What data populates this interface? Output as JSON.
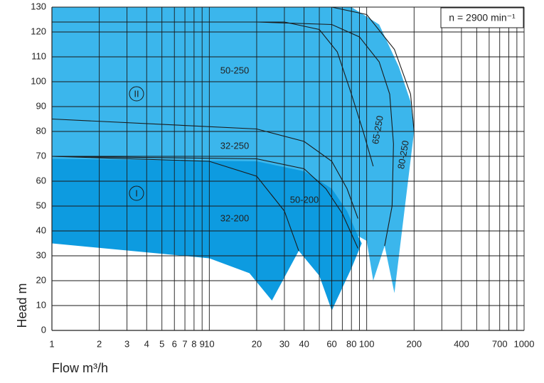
{
  "chart_data": {
    "type": "area",
    "x_label": "Flow m³/h",
    "y_label": "Head m",
    "annotation": "n = 2900 min⁻¹",
    "xscale": "log",
    "grid": true,
    "xlim": [
      1,
      1000
    ],
    "ylim": [
      0,
      130
    ],
    "xticks": [
      1,
      2,
      3,
      4,
      5,
      6,
      7,
      8,
      9,
      10,
      20,
      30,
      40,
      60,
      80,
      100,
      200,
      400,
      700,
      1000
    ],
    "xminor": [
      50,
      70,
      90,
      300,
      500,
      600,
      800,
      900
    ],
    "yticks": [
      0,
      10,
      20,
      30,
      40,
      50,
      60,
      70,
      80,
      90,
      100,
      110,
      120,
      130
    ],
    "regions": [
      {
        "name": "II",
        "color": "#3bb6ec",
        "x": [
          1,
          80,
          120,
          160,
          190,
          200,
          150,
          130,
          110,
          100,
          88,
          1
        ],
        "y": [
          130,
          130,
          123,
          106,
          92,
          80,
          15,
          34,
          20,
          36,
          38,
          69
        ]
      },
      {
        "name": "I",
        "color": "#0d9be0",
        "x": [
          1,
          20,
          40,
          60,
          75,
          88,
          93,
          80,
          60,
          50,
          37,
          25,
          18,
          10,
          1
        ],
        "y": [
          69,
          68,
          64,
          57,
          48,
          38,
          35,
          25,
          8,
          22,
          32,
          12,
          23,
          29,
          35
        ]
      }
    ],
    "curves": [
      {
        "name": "50-250",
        "x": [
          1,
          30,
          50,
          65,
          80,
          95,
          110
        ],
        "y": [
          124,
          124,
          121,
          112,
          95,
          80,
          66
        ]
      },
      {
        "name": "65-250",
        "x": [
          20,
          60,
          90,
          120,
          140,
          148,
          145,
          130
        ],
        "y": [
          124,
          123,
          118,
          108,
          95,
          75,
          50,
          34
        ]
      },
      {
        "name": "80-250",
        "x": [
          60,
          100,
          150,
          190,
          200
        ],
        "y": [
          130,
          127,
          113,
          95,
          80
        ]
      },
      {
        "name": "32-250",
        "x": [
          1,
          20,
          40,
          60,
          75,
          88
        ],
        "y": [
          85,
          81,
          76,
          68,
          57,
          45
        ]
      },
      {
        "name": "50-200",
        "x": [
          1,
          20,
          40,
          55,
          70,
          88
        ],
        "y": [
          70,
          69,
          65,
          57,
          47,
          33
        ]
      },
      {
        "name": "32-200",
        "x": [
          1,
          10,
          20,
          30,
          37
        ],
        "y": [
          70,
          68,
          62,
          48,
          32
        ]
      }
    ]
  }
}
